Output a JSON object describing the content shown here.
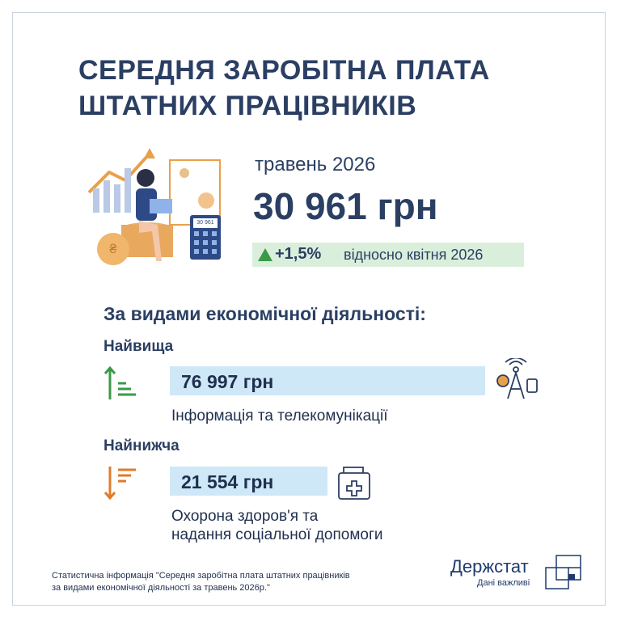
{
  "header": {
    "title_lines": [
      "СЕРЕДНЯ ЗАРОБІТНА ПЛАТА",
      "ШТАТНИХ ПРАЦІВНИКІВ"
    ]
  },
  "illustration": {
    "calculator_display": "30 961"
  },
  "summary": {
    "period": "травень 2026",
    "value": "30 961 грн",
    "change": "+1,5%",
    "change_note": "відносно квітня 2026"
  },
  "breakdown": {
    "heading": "За видами економічної діяльності:",
    "highest": {
      "label": "Найвища",
      "value": "76 997 грн",
      "activity_lines": [
        "Інформація та телекомунікації"
      ]
    },
    "lowest": {
      "label": "Найнижча",
      "value": "21 554 грн",
      "activity_lines": [
        "Охорона здоров'я та",
        "надання соціальної допомоги"
      ]
    }
  },
  "footer": {
    "source_lines": [
      "Статистична інформація \"Середня заробітна плата штатних працівників",
      "за видами економічної діяльності за травень 2026р.\""
    ],
    "logo": {
      "name": "Держстат",
      "tagline": "Дані важливі"
    }
  }
}
